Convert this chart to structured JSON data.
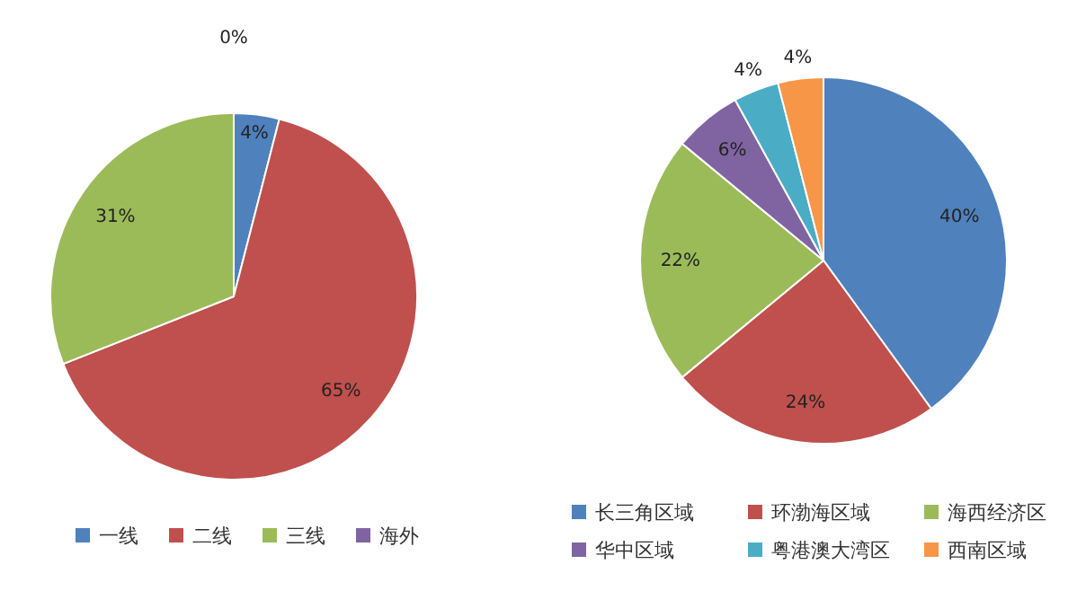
{
  "chart_data": [
    {
      "type": "pie",
      "categories": [
        "一线",
        "二线",
        "三线",
        "海外"
      ],
      "values": [
        4,
        65,
        31,
        0
      ],
      "value_labels": [
        "4%",
        "65%",
        "31%",
        "0%"
      ],
      "colors": [
        "#4f81bd",
        "#c0504d",
        "#9bbb59",
        "#8064a2"
      ],
      "legend": "bottom"
    },
    {
      "type": "pie",
      "categories": [
        "长三角区域",
        "环渤海区域",
        "海西经济区",
        "华中区域",
        "粤港澳大湾区",
        "西南区域"
      ],
      "values": [
        40,
        24,
        22,
        6,
        4,
        4
      ],
      "value_labels": [
        "40%",
        "24%",
        "22%",
        "6%",
        "4%",
        "4%"
      ],
      "colors": [
        "#4f81bd",
        "#c0504d",
        "#9bbb59",
        "#8064a2",
        "#4bacc6",
        "#f79646"
      ],
      "legend": "bottom"
    }
  ]
}
